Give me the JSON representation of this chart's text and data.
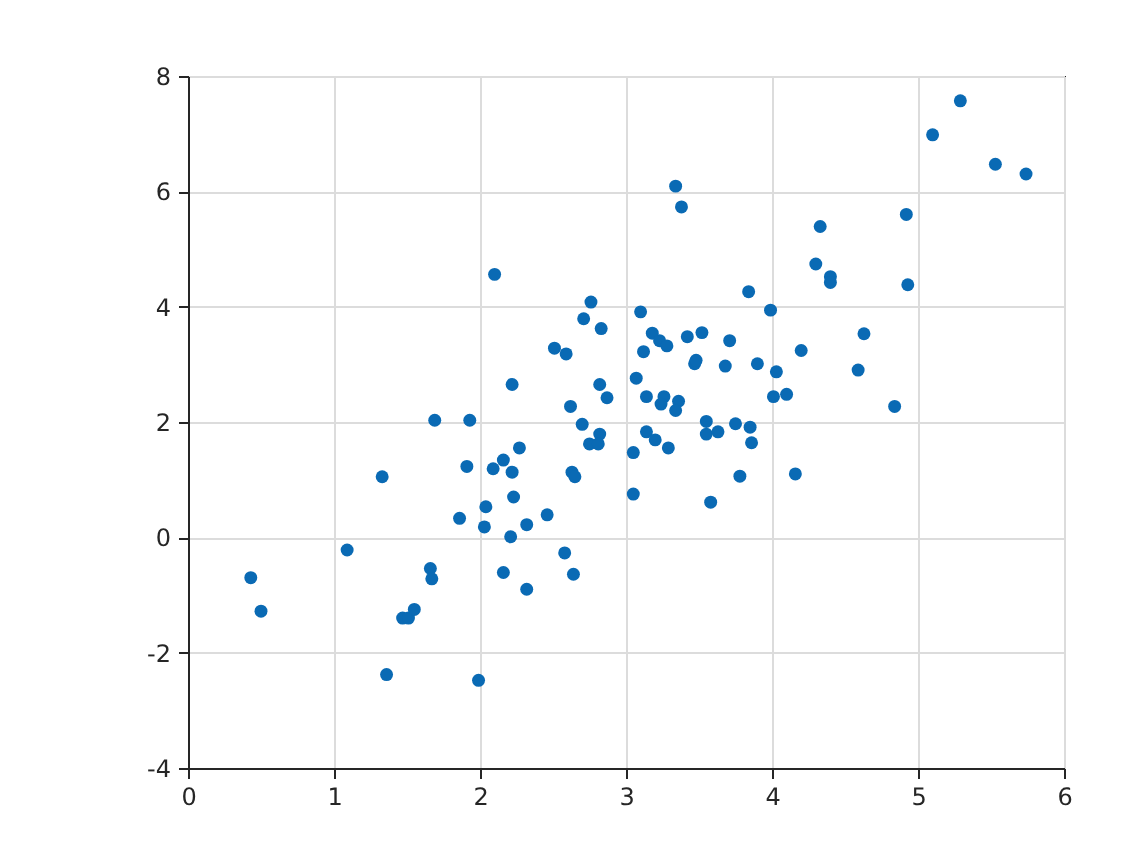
{
  "chart_data": {
    "type": "scatter",
    "xlim": [
      0,
      6
    ],
    "ylim": [
      -4,
      8
    ],
    "xticks": [
      0,
      1,
      2,
      3,
      4,
      5,
      6
    ],
    "yticks": [
      -4,
      -2,
      0,
      2,
      4,
      6,
      8
    ],
    "grid": true,
    "marker": "circle",
    "series": [
      {
        "color": "#0a6ab4",
        "x": [
          0.43,
          0.5,
          1.09,
          1.33,
          1.36,
          1.47,
          1.51,
          1.55,
          1.66,
          1.67,
          1.69,
          1.93,
          1.91,
          1.86,
          1.99,
          2.03,
          2.04,
          2.1,
          2.09,
          2.16,
          2.22,
          2.22,
          2.27,
          2.23,
          2.21,
          2.16,
          2.32,
          2.32,
          2.46,
          2.51,
          2.59,
          2.58,
          2.64,
          2.62,
          2.7,
          2.63,
          2.65,
          2.71,
          2.76,
          2.83,
          2.82,
          2.87,
          2.82,
          2.75,
          2.81,
          3.34,
          3.38,
          3.1,
          3.12,
          3.07,
          3.18,
          3.23,
          3.28,
          3.42,
          3.52,
          3.47,
          3.48,
          3.71,
          3.68,
          3.84,
          3.99,
          3.9,
          4.03,
          4.2,
          4.01,
          4.1,
          3.14,
          3.26,
          3.24,
          3.36,
          3.34,
          3.14,
          3.2,
          3.29,
          3.05,
          3.05,
          3.55,
          3.55,
          3.63,
          3.75,
          3.85,
          3.86,
          3.78,
          3.58,
          4.16,
          4.33,
          4.3,
          4.4,
          4.4,
          4.63,
          4.59,
          4.84,
          5.29,
          5.1,
          5.53,
          5.74,
          4.92,
          4.93
        ],
        "values": [
          -0.7,
          -1.28,
          -0.22,
          1.05,
          -2.38,
          -1.4,
          -1.4,
          -1.25,
          -0.54,
          -0.72,
          2.03,
          2.03,
          1.23,
          0.33,
          -2.48,
          0.18,
          0.53,
          4.56,
          1.19,
          1.34,
          1.13,
          2.65,
          1.55,
          0.7,
          0.01,
          -0.61,
          0.22,
          -0.9,
          0.39,
          3.28,
          3.18,
          -0.27,
          -0.64,
          2.27,
          1.96,
          1.13,
          1.05,
          3.79,
          4.08,
          3.62,
          2.65,
          2.42,
          1.79,
          1.62,
          1.62,
          6.09,
          5.73,
          3.91,
          3.22,
          2.76,
          3.54,
          3.41,
          3.32,
          3.48,
          3.55,
          3.01,
          3.07,
          3.41,
          2.97,
          4.26,
          3.94,
          3.01,
          2.87,
          3.24,
          2.44,
          2.48,
          2.44,
          2.44,
          2.31,
          2.36,
          2.2,
          1.83,
          1.69,
          1.55,
          1.47,
          0.75,
          2.01,
          1.79,
          1.83,
          1.97,
          1.91,
          1.64,
          1.06,
          0.61,
          1.1,
          5.39,
          4.74,
          4.52,
          4.42,
          3.53,
          2.9,
          2.27,
          7.57,
          6.98,
          6.47,
          6.3,
          5.6,
          4.38
        ]
      }
    ]
  }
}
